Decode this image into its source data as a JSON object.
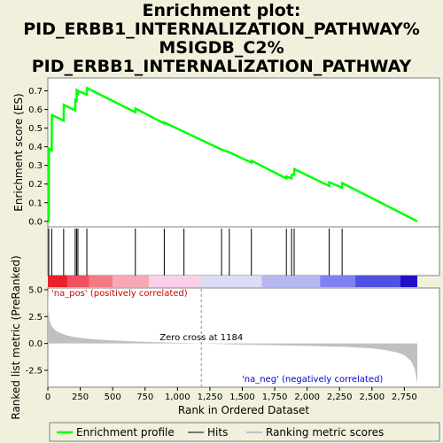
{
  "title_lines": [
    "Enrichment plot:",
    "PID_ERBB1_INTERNALIZATION_PATHWAY%",
    "MSIGDB_C2%",
    "PID_ERBB1_INTERNALIZATION_PATHWAY"
  ],
  "colors": {
    "enrichment_line": "#00ff00",
    "hits": "#000000",
    "metric_fill": "#c0c0c0",
    "pos_label": "#cc0000",
    "neg_label": "#0000cc",
    "background": "#f0f0dc",
    "plot_bg": "#ffffff"
  },
  "chart_data": {
    "type": "line",
    "es_panel": {
      "ylabel": "Enrichment score (ES)",
      "ylim": [
        -0.02,
        0.75
      ],
      "yticks": [
        0.0,
        0.1,
        0.2,
        0.3,
        0.4,
        0.5,
        0.6,
        0.7
      ],
      "ytick_labels": [
        "0.0",
        "0.1",
        "0.2",
        "0.3",
        "0.4",
        "0.5",
        "0.6",
        "0.7"
      ],
      "grid": false,
      "series": [
        {
          "name": "Enrichment profile",
          "x": [
            0,
            7,
            8,
            30,
            31,
            122,
            123,
            211,
            212,
            222,
            223,
            232,
            233,
            301,
            302,
            675,
            676,
            898,
            899,
            1050,
            1340,
            1400,
            1401,
            1570,
            1571,
            1840,
            1841,
            1880,
            1881,
            1900,
            1901,
            2170,
            2171,
            2270,
            2271,
            2850
          ],
          "y": [
            0.0,
            0.0,
            0.39,
            0.38,
            0.57,
            0.54,
            0.625,
            0.595,
            0.65,
            0.645,
            0.7,
            0.69,
            0.7,
            0.68,
            0.715,
            0.585,
            0.605,
            0.525,
            0.53,
            0.48,
            0.385,
            0.37,
            0.37,
            0.315,
            0.325,
            0.23,
            0.24,
            0.23,
            0.25,
            0.25,
            0.28,
            0.19,
            0.21,
            0.18,
            0.205,
            0.0
          ]
        }
      ]
    },
    "hits": [
      7,
      30,
      122,
      211,
      222,
      232,
      301,
      675,
      898,
      1050,
      1340,
      1400,
      1570,
      1840,
      1880,
      1900,
      2170,
      2270
    ],
    "metric_panel": {
      "ylabel": "Ranked list metric (PreRanked)",
      "ylim": [
        -3.9,
        5.0
      ],
      "yticks": [
        -2.5,
        0.0,
        2.5,
        5.0
      ],
      "ytick_labels": [
        "-2.5",
        "0.0",
        "2.5",
        "5.0"
      ],
      "profile": {
        "x": [
          0,
          5,
          15,
          30,
          60,
          100,
          150,
          200,
          300,
          400,
          500,
          700,
          900,
          1100,
          1184,
          1400,
          1700,
          2000,
          2300,
          2500,
          2600,
          2700,
          2750,
          2800,
          2830,
          2850
        ],
        "y": [
          4.7,
          3.0,
          2.1,
          1.6,
          1.2,
          0.95,
          0.75,
          0.6,
          0.45,
          0.35,
          0.28,
          0.18,
          0.1,
          0.03,
          0.0,
          -0.08,
          -0.15,
          -0.22,
          -0.32,
          -0.45,
          -0.6,
          -0.85,
          -1.1,
          -1.6,
          -2.3,
          -3.7
        ]
      },
      "zero_cross_rank": 1184,
      "zero_cross_label": "Zero cross at 1184",
      "pos_label": "'na_pos' (positively correlated)",
      "neg_label": "'na_neg' (negatively correlated)"
    },
    "xlabel": "Rank in Ordered Dataset",
    "xlim": [
      0,
      2850
    ],
    "xticks": [
      0,
      250,
      500,
      750,
      1000,
      1250,
      1500,
      1750,
      2000,
      2250,
      2500,
      2750
    ],
    "xtick_labels": [
      "0",
      "250",
      "500",
      "750",
      "1,000",
      "1,250",
      "1,500",
      "1,750",
      "2,000",
      "2,250",
      "2,500",
      "2,750"
    ],
    "colorbar": [
      {
        "to": 150,
        "color": "#e8202a"
      },
      {
        "to": 320,
        "color": "#f05060"
      },
      {
        "to": 500,
        "color": "#f47a84"
      },
      {
        "to": 780,
        "color": "#f7a8b4"
      },
      {
        "to": 1180,
        "color": "#fad0e8"
      },
      {
        "to": 1650,
        "color": "#dcdcf5"
      },
      {
        "to": 2100,
        "color": "#b8b8f0"
      },
      {
        "to": 2370,
        "color": "#8080f0"
      },
      {
        "to": 2720,
        "color": "#5050e0"
      },
      {
        "to": 2850,
        "color": "#2010c8"
      }
    ],
    "legend": {
      "position": "bottom",
      "entries": [
        "Enrichment profile",
        "Hits",
        "Ranking metric scores"
      ]
    }
  }
}
